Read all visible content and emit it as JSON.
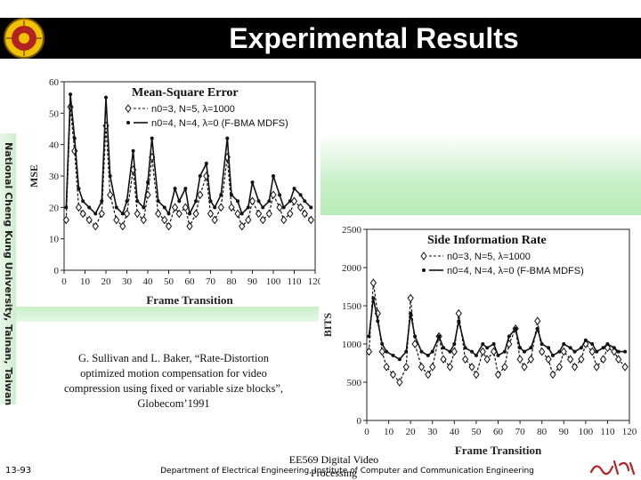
{
  "header": {
    "title": "Experimental Results",
    "logo_icon": "university-seal-icon"
  },
  "sidebar": {
    "vertical_text": "National Cheng Kung University, Tainan, Taiwan"
  },
  "citation": {
    "text": "G. Sullivan and L. Baker, “Rate-Distortion optimized motion compensation for video compression using fixed or variable size blocks”, Globecom’1991"
  },
  "footer": {
    "page_number": "13-93",
    "course": "EE569 Digital Video Processing",
    "department": "Department of Electrical Engineering, Institute of Computer and Communication Engineering",
    "seal_icon": "calligraphy-seal-icon"
  },
  "colors": {
    "title_bar": "#000000",
    "title_text": "#ffffff",
    "accent_green": "#b8ecb8"
  },
  "chart_data": [
    {
      "type": "line",
      "title": "Mean-Square Error",
      "xlabel": "Frame Transition",
      "ylabel": "MSE",
      "xlim": [
        0,
        120
      ],
      "ylim": [
        0,
        60
      ],
      "xticks": [
        "0",
        "10",
        "20",
        "30",
        "40",
        "50",
        "60",
        "70",
        "80",
        "90",
        "100",
        "110",
        "120"
      ],
      "yticks": [
        "0",
        "10",
        "20",
        "30",
        "40",
        "50",
        "60"
      ],
      "series": [
        {
          "name": "n0=3, N=5, λ=1000",
          "marker": "diamond",
          "x": [
            1,
            3,
            5,
            7,
            9,
            12,
            15,
            18,
            20,
            22,
            25,
            28,
            30,
            33,
            35,
            38,
            40,
            42,
            45,
            48,
            50,
            53,
            55,
            58,
            60,
            63,
            65,
            68,
            70,
            72,
            75,
            78,
            80,
            83,
            85,
            88,
            90,
            93,
            95,
            98,
            100,
            103,
            105,
            108,
            110,
            113,
            115,
            118
          ],
          "values": [
            16,
            52,
            38,
            20,
            18,
            16,
            14,
            18,
            46,
            24,
            16,
            14,
            18,
            32,
            18,
            16,
            24,
            36,
            18,
            16,
            14,
            20,
            18,
            20,
            14,
            18,
            24,
            30,
            18,
            16,
            20,
            36,
            20,
            18,
            14,
            16,
            22,
            18,
            16,
            18,
            24,
            20,
            16,
            18,
            22,
            20,
            18,
            16
          ]
        },
        {
          "name": "n0=4, N=4, λ=0 (F-BMA MDFS)",
          "marker": "dot",
          "x": [
            1,
            3,
            5,
            7,
            9,
            12,
            15,
            18,
            20,
            22,
            25,
            28,
            30,
            33,
            35,
            38,
            40,
            42,
            45,
            48,
            50,
            53,
            55,
            58,
            60,
            63,
            65,
            68,
            70,
            72,
            75,
            78,
            80,
            83,
            85,
            88,
            90,
            93,
            95,
            98,
            100,
            103,
            105,
            108,
            110,
            113,
            115,
            118
          ],
          "values": [
            20,
            56,
            42,
            26,
            22,
            20,
            18,
            22,
            55,
            30,
            20,
            18,
            22,
            38,
            22,
            20,
            28,
            42,
            22,
            20,
            18,
            26,
            22,
            26,
            18,
            22,
            30,
            34,
            22,
            20,
            24,
            42,
            24,
            22,
            18,
            20,
            28,
            22,
            20,
            22,
            30,
            24,
            20,
            22,
            26,
            24,
            22,
            20
          ]
        }
      ],
      "legend": "top-right"
    },
    {
      "type": "line",
      "title": "Side Information Rate",
      "xlabel": "Frame Transition",
      "ylabel": "BITS",
      "xlim": [
        0,
        120
      ],
      "ylim": [
        0,
        2500
      ],
      "xticks": [
        "0",
        "10",
        "20",
        "30",
        "40",
        "50",
        "60",
        "70",
        "80",
        "90",
        "100",
        "110",
        "120"
      ],
      "yticks": [
        "0",
        "500",
        "1000",
        "1500",
        "2000",
        "2500"
      ],
      "series": [
        {
          "name": "n0=3, N=5, λ=1000",
          "marker": "diamond",
          "x": [
            1,
            3,
            5,
            7,
            9,
            12,
            15,
            18,
            20,
            22,
            25,
            28,
            30,
            33,
            35,
            38,
            40,
            42,
            45,
            48,
            50,
            53,
            55,
            58,
            60,
            63,
            65,
            68,
            70,
            72,
            75,
            78,
            80,
            83,
            85,
            88,
            90,
            93,
            95,
            98,
            100,
            103,
            105,
            108,
            110,
            113,
            115,
            118
          ],
          "values": [
            900,
            1800,
            1400,
            900,
            700,
            600,
            500,
            700,
            1600,
            1000,
            700,
            600,
            700,
            1100,
            800,
            700,
            900,
            1400,
            800,
            700,
            600,
            900,
            800,
            900,
            600,
            700,
            1000,
            1200,
            800,
            700,
            800,
            1300,
            900,
            800,
            600,
            700,
            900,
            800,
            700,
            800,
            1000,
            900,
            700,
            800,
            950,
            900,
            800,
            700
          ]
        },
        {
          "name": "n0=4, N=4, λ=0 (F-BMA MDFS)",
          "marker": "dot",
          "x": [
            1,
            3,
            5,
            7,
            9,
            12,
            15,
            18,
            20,
            22,
            25,
            28,
            30,
            33,
            35,
            38,
            40,
            42,
            45,
            48,
            50,
            53,
            55,
            58,
            60,
            63,
            65,
            68,
            70,
            72,
            75,
            78,
            80,
            83,
            85,
            88,
            90,
            93,
            95,
            98,
            100,
            103,
            105,
            108,
            110,
            113,
            115,
            118
          ],
          "values": [
            1100,
            1600,
            1300,
            1000,
            900,
            850,
            800,
            900,
            1400,
            1100,
            900,
            850,
            900,
            1100,
            950,
            900,
            1000,
            1300,
            950,
            900,
            850,
            1000,
            950,
            1000,
            850,
            900,
            1100,
            1200,
            950,
            900,
            950,
            1200,
            1000,
            950,
            850,
            900,
            1000,
            950,
            900,
            950,
            1050,
            1000,
            900,
            950,
            1000,
            950,
            900,
            900
          ]
        }
      ],
      "legend": "top-right"
    }
  ]
}
